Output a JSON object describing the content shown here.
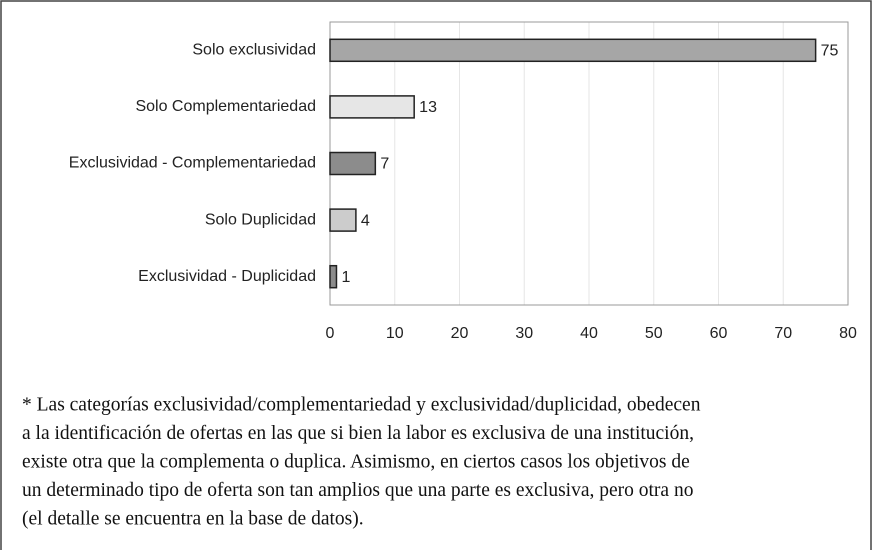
{
  "chart_data": {
    "type": "bar",
    "orientation": "horizontal",
    "categories": [
      "Solo exclusividad",
      "Solo Complementariedad",
      "Exclusividad - Complementariedad",
      "Solo Duplicidad",
      "Exclusividad - Duplicidad"
    ],
    "values": [
      75,
      13,
      7,
      4,
      1
    ],
    "colors": [
      "#a6a6a6",
      "#e6e6e6",
      "#8c8c8c",
      "#cccccc",
      "#8c8c8c"
    ],
    "xlim": [
      0,
      80
    ],
    "xticks": [
      0,
      10,
      20,
      30,
      40,
      50,
      60,
      70,
      80
    ],
    "grid": true,
    "note": [
      "* Las categorías exclusividad/complementariedad y exclusividad/duplicidad, obedecen",
      "a la identificación de ofertas en las que si bien la labor es exclusiva de una institución,",
      "existe otra que la complementa o duplica. Asimismo, en ciertos casos los objetivos de",
      "un determinado tipo de oferta son tan amplios que una parte es exclusiva, pero otra no",
      "(el detalle se encuentra en la base de datos)."
    ]
  }
}
